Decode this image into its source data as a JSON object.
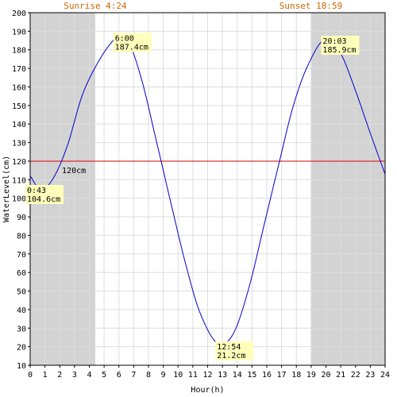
{
  "chart_data": {
    "type": "line",
    "xlabel": "Hour(h)",
    "ylabel": "WaterLevel(cm)",
    "xlim": [
      0,
      24
    ],
    "ylim": [
      10,
      200
    ],
    "xticks": [
      "0",
      "1",
      "2",
      "3",
      "4",
      "5",
      "6",
      "7",
      "8",
      "9",
      "10",
      "11",
      "12",
      "13",
      "14",
      "15",
      "16",
      "17",
      "18",
      "19",
      "20",
      "21",
      "22",
      "23",
      "24"
    ],
    "yticks": [
      "10",
      "20",
      "30",
      "40",
      "50",
      "60",
      "70",
      "80",
      "90",
      "100",
      "110",
      "120",
      "130",
      "140",
      "150",
      "160",
      "170",
      "180",
      "190",
      "200"
    ],
    "grid": true,
    "sunrise": {
      "label": "Sunrise 4:24",
      "hour": 4.4
    },
    "sunset": {
      "label": "Sunset 18:59",
      "hour": 18.98
    },
    "reference_line": {
      "value": 120,
      "label": "120cm",
      "color": "#dd0000"
    },
    "series": [
      {
        "color": "#0000cc",
        "points": [
          [
            0,
            112
          ],
          [
            0.72,
            104.6
          ],
          [
            1.5,
            110
          ],
          [
            2.5,
            128
          ],
          [
            3.5,
            155
          ],
          [
            4.5,
            172
          ],
          [
            5.5,
            184
          ],
          [
            6.0,
            187.4
          ],
          [
            6.6,
            185
          ],
          [
            7.5,
            165
          ],
          [
            8.5,
            132
          ],
          [
            9.5,
            98
          ],
          [
            10.5,
            65
          ],
          [
            11.5,
            38
          ],
          [
            12.9,
            21.2
          ],
          [
            13.8,
            28
          ],
          [
            14.8,
            52
          ],
          [
            15.8,
            85
          ],
          [
            16.8,
            118
          ],
          [
            17.8,
            150
          ],
          [
            18.8,
            172
          ],
          [
            20.05,
            185.9
          ],
          [
            21.0,
            178
          ],
          [
            22.0,
            158
          ],
          [
            23.0,
            135
          ],
          [
            24.0,
            113
          ]
        ]
      }
    ],
    "annotations": [
      {
        "time": "0:43",
        "value": "104.6cm",
        "hour": 0.72,
        "level": 104.6
      },
      {
        "time": "6:00",
        "value": "187.4cm",
        "hour": 6.0,
        "level": 187.4
      },
      {
        "time": "12:54",
        "value": "21.2cm",
        "hour": 12.9,
        "level": 21.2
      },
      {
        "time": "20:03",
        "value": "185.9cm",
        "hour": 20.05,
        "level": 185.9
      }
    ],
    "colors": {
      "night_shade": "#d3d3d3",
      "grid": "#dddddd",
      "sun_text": "#cc6600",
      "annotation_bg": "#ffffbb"
    }
  }
}
